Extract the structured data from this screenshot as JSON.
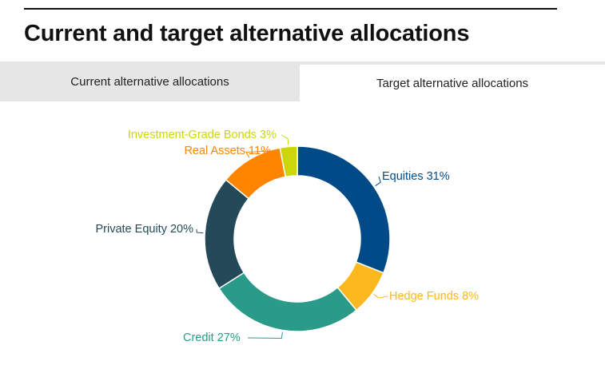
{
  "header": {
    "title": "Current and target alternative allocations"
  },
  "tabs": [
    {
      "label": "Current alternative allocations",
      "active": false
    },
    {
      "label": "Target alternative allocations",
      "active": true
    }
  ],
  "chart_data": {
    "type": "pie",
    "style": "donut",
    "title": "",
    "slices": [
      {
        "label": "Equities 31%",
        "value": 31,
        "color": "#004b87"
      },
      {
        "label": "Hedge Funds 8%",
        "value": 8,
        "color": "#fbb81f"
      },
      {
        "label": "Credit 27%",
        "value": 27,
        "color": "#2a9b88"
      },
      {
        "label": "Private Equity 20%",
        "value": 20,
        "color": "#244a5a"
      },
      {
        "label": "Real Assets 11%",
        "value": 11,
        "color": "#ff8400"
      },
      {
        "label": "Investment-Grade Bonds 3%",
        "value": 3,
        "color": "#cdd60b"
      }
    ]
  }
}
